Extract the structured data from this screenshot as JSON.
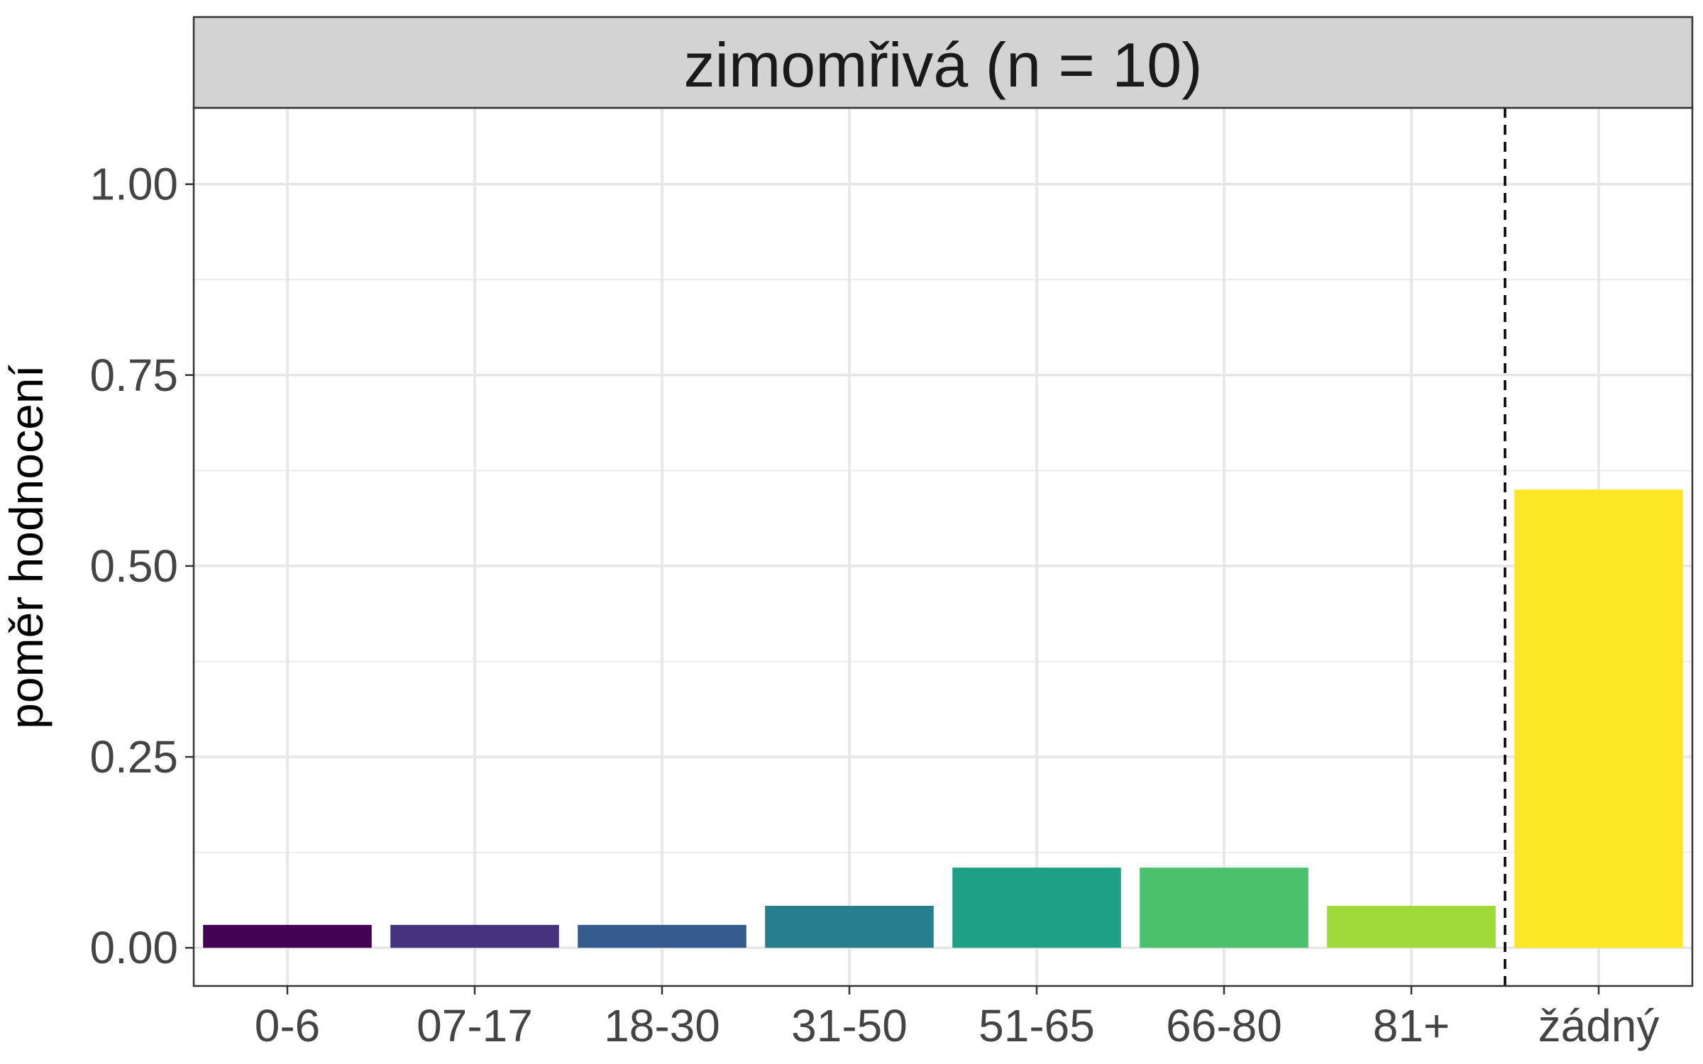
{
  "chart_data": {
    "type": "bar",
    "title": "zimomřivá (n = 10)",
    "xlabel": "",
    "ylabel": "poměr hodnocení",
    "categories": [
      "0-6",
      "07-17",
      "18-30",
      "31-50",
      "51-65",
      "66-80",
      "81+",
      "žádný"
    ],
    "values": [
      0.03,
      0.03,
      0.03,
      0.055,
      0.105,
      0.105,
      0.055,
      0.6
    ],
    "colors": [
      "#440154",
      "#46327E",
      "#365C8D",
      "#277F8E",
      "#1FA187",
      "#4AC16D",
      "#9FDA3A",
      "#FDE725"
    ],
    "ylim": [
      -0.05,
      1.1
    ],
    "yticks": [
      0,
      0.25,
      0.5,
      0.75,
      1.0
    ],
    "ytick_labels": [
      "0.00",
      "0.25",
      "0.50",
      "0.75",
      "1.00"
    ],
    "reference_line": {
      "between_categories": [
        "81+",
        "žádný"
      ],
      "style": "dashed"
    },
    "grid": true,
    "legend": "none"
  }
}
